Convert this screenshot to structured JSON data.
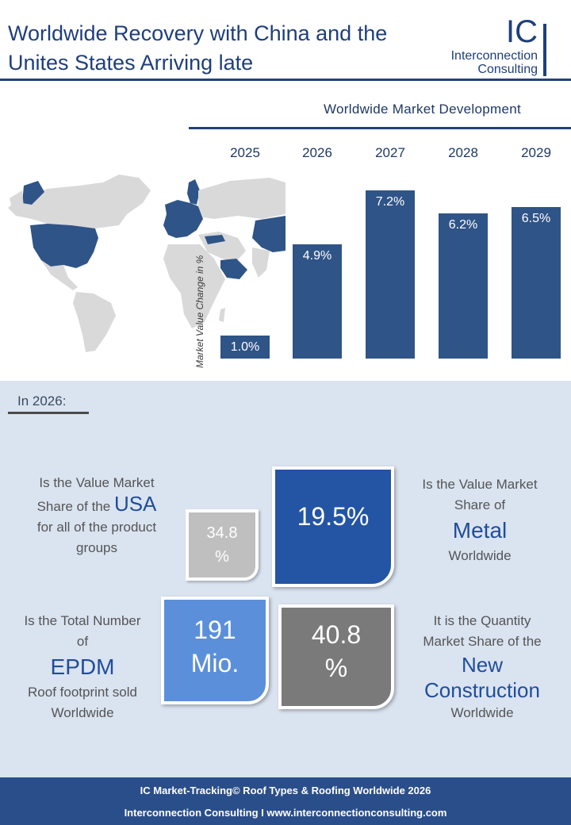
{
  "header": {
    "title_line1": "Worldwide Recovery with China and the",
    "title_line2": "Unites States Arriving late",
    "logo_letters": "IC",
    "logo_name_line1": "Interconnection",
    "logo_name_line2": "Consulting"
  },
  "colors": {
    "brand_navy": "#24417a",
    "bar_blue": "#2f5487",
    "panel_bg": "#dae3f0",
    "tile_metal": "#2455a4",
    "tile_epdm": "#5b8fd9",
    "tile_usa": "#bfbfbf",
    "tile_new": "#7a7a7a",
    "highlight_country": "#2f5487",
    "map_gray": "#d9d9d9"
  },
  "chart_data": {
    "type": "bar",
    "title": "Worldwide Market Development",
    "ylabel": "Market Value Change in %",
    "categories": [
      "2025",
      "2026",
      "2027",
      "2028",
      "2029"
    ],
    "values": [
      1.0,
      4.9,
      7.2,
      6.2,
      6.5
    ],
    "value_labels": [
      "1.0%",
      "4.9%",
      "7.2%",
      "6.2%",
      "6.5%"
    ],
    "ylim": [
      0,
      7.2
    ],
    "grid": false,
    "legend": "none"
  },
  "map": {
    "highlighted_regions": [
      "USA",
      "Europe",
      "China",
      "Saudi Arabia",
      "Turkey",
      "Greenland"
    ]
  },
  "section": {
    "label": "In 2026:"
  },
  "stats": {
    "usa": {
      "value_line1": "34.8",
      "value_line2": "%",
      "text_line1": "Is the Value Market",
      "text_line2a": "Share of the ",
      "text_highlight": "USA",
      "text_line3": "for all of the product",
      "text_line4": "groups"
    },
    "metal": {
      "value": "19.5%",
      "text_line1": "Is the Value Market",
      "text_line2": "Share of",
      "text_highlight": "Metal",
      "text_line4": "Worldwide"
    },
    "epdm": {
      "value_line1": "191",
      "value_line2": "Mio.",
      "text_line1": "Is the Total Number",
      "text_line2": "of",
      "text_highlight": "EPDM",
      "text_line4": "Roof footprint sold",
      "text_line5": "Worldwide"
    },
    "new_construction": {
      "value_line1": "40.8",
      "value_line2": "%",
      "text_line1": "It is the Quantity",
      "text_line2": "Market Share of the",
      "text_highlight1": "New",
      "text_highlight2": "Construction",
      "text_line5": "Worldwide"
    }
  },
  "footer": {
    "line1": "IC Market-Tracking© Roof Types & Roofing Worldwide 2026",
    "line2": "Interconnection Consulting I www.interconnectionconsulting.com"
  }
}
